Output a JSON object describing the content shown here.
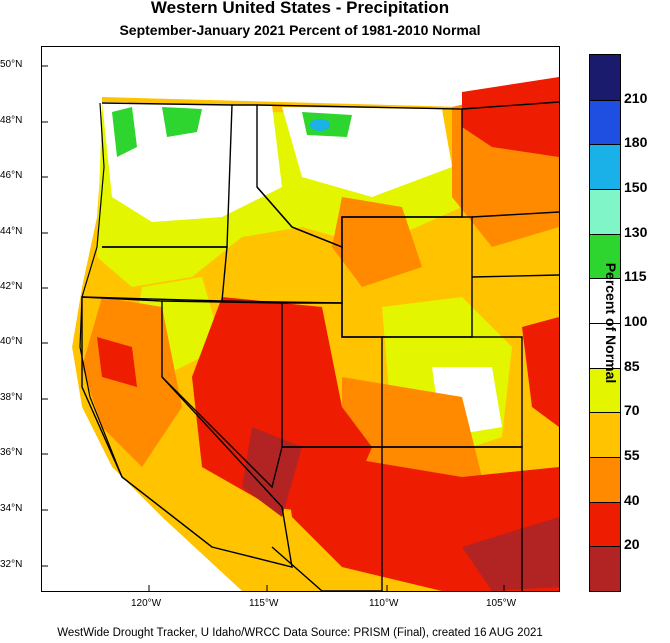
{
  "header": {
    "title": "Western United States - Precipitation",
    "subtitle": "September-January 2021  Percent of 1981-2010 Normal"
  },
  "map": {
    "lat_labels": [
      "50°N",
      "48°N",
      "46°N",
      "44°N",
      "42°N",
      "40°N",
      "38°N",
      "36°N",
      "34°N",
      "32°N"
    ],
    "lon_labels": [
      "120°W",
      "115°W",
      "110°W",
      "105°W"
    ]
  },
  "legend": {
    "title": "Percent of Normal",
    "bins": [
      {
        "color": "#1b1b6e"
      },
      {
        "color": "#1f4fe0"
      },
      {
        "color": "#1ab0e8"
      },
      {
        "color": "#7ff5c8"
      },
      {
        "color": "#2ed52e"
      },
      {
        "color": "#ffffff"
      },
      {
        "color": "#ffffff"
      },
      {
        "color": "#e4f500"
      },
      {
        "color": "#ffc300"
      },
      {
        "color": "#ff8a00"
      },
      {
        "color": "#ee1c00"
      },
      {
        "color": "#b22424"
      }
    ],
    "labels": [
      "210",
      "180",
      "150",
      "130",
      "115",
      "100",
      "85",
      "70",
      "55",
      "40",
      "20"
    ]
  },
  "footer": {
    "credit": "WestWide Drought Tracker, U Idaho/WRCC Data Source: PRISM (Final), created 16 AUG 2021"
  }
}
